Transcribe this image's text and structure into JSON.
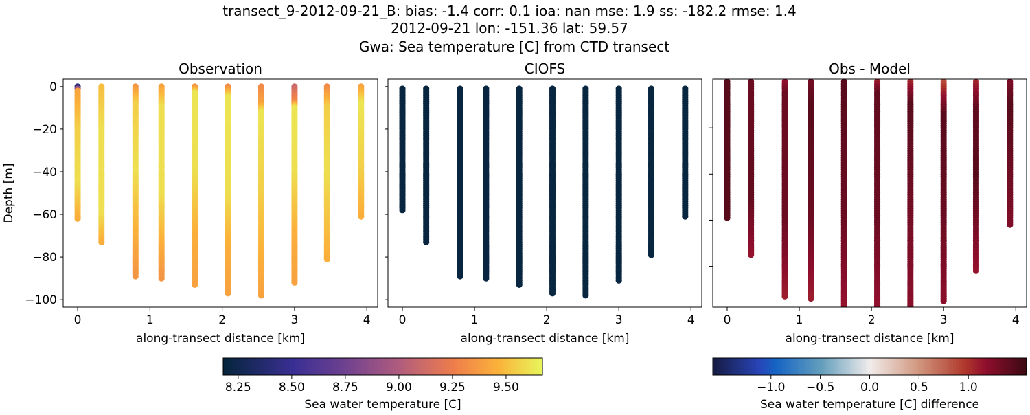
{
  "title_lines": [
    "transect_9-2012-09-21_B: bias: -1.4  corr: 0.1  ioa: nan  mse: 1.9  ss: -182.2  rmse: 1.4",
    "2012-09-21 lon: -151.36 lat: 59.57",
    "Gwa: Sea temperature [C] from CTD transect"
  ],
  "chart_data": [
    {
      "type": "scatter",
      "title": "Observation",
      "xlabel": "along-transect distance [km]",
      "ylabel": "Depth [m]",
      "xlim": [
        -0.2,
        4.15
      ],
      "ylim": [
        -103.5,
        3.5
      ],
      "xticks": [
        0,
        1,
        2,
        3,
        4
      ],
      "yticks": [
        0,
        -20,
        -40,
        -60,
        -80,
        -100
      ],
      "colormap": "thermal",
      "profiles": [
        {
          "x": 0,
          "points": [
            [
              0,
              8.4
            ],
            [
              -2,
              9.4
            ],
            [
              -20,
              9.55
            ],
            [
              -45,
              9.6
            ],
            [
              -62,
              9.45
            ]
          ]
        },
        {
          "x": 0.33,
          "points": [
            [
              0,
              9.5
            ],
            [
              -20,
              9.6
            ],
            [
              -60,
              9.6
            ],
            [
              -73,
              9.45
            ]
          ]
        },
        {
          "x": 0.8,
          "points": [
            [
              0,
              9.35
            ],
            [
              -8,
              9.55
            ],
            [
              -40,
              9.6
            ],
            [
              -70,
              9.45
            ],
            [
              -89,
              9.35
            ]
          ]
        },
        {
          "x": 1.16,
          "points": [
            [
              0,
              9.4
            ],
            [
              -10,
              9.6
            ],
            [
              -50,
              9.6
            ],
            [
              -90,
              9.35
            ]
          ]
        },
        {
          "x": 1.62,
          "points": [
            [
              0,
              9.35
            ],
            [
              -3,
              9.62
            ],
            [
              -40,
              9.6
            ],
            [
              -70,
              9.45
            ],
            [
              -93,
              9.4
            ]
          ]
        },
        {
          "x": 2.08,
          "points": [
            [
              0,
              9.3
            ],
            [
              -5,
              9.62
            ],
            [
              -50,
              9.6
            ],
            [
              -75,
              9.45
            ],
            [
              -97,
              9.4
            ]
          ]
        },
        {
          "x": 2.54,
          "points": [
            [
              0,
              9.3
            ],
            [
              -8,
              9.4
            ],
            [
              -12,
              9.62
            ],
            [
              -50,
              9.55
            ],
            [
              -98,
              9.4
            ]
          ]
        },
        {
          "x": 3.0,
          "points": [
            [
              0,
              9.1
            ],
            [
              -7,
              9.3
            ],
            [
              -10,
              9.62
            ],
            [
              -40,
              9.6
            ],
            [
              -70,
              9.45
            ],
            [
              -92,
              9.4
            ]
          ]
        },
        {
          "x": 3.45,
          "points": [
            [
              0,
              9.3
            ],
            [
              -10,
              9.55
            ],
            [
              -40,
              9.6
            ],
            [
              -81,
              9.45
            ]
          ]
        },
        {
          "x": 3.92,
          "points": [
            [
              0,
              9.4
            ],
            [
              -8,
              9.62
            ],
            [
              -40,
              9.55
            ],
            [
              -61,
              9.45
            ]
          ]
        }
      ]
    },
    {
      "type": "scatter",
      "title": "CIOFS",
      "xlabel": "along-transect distance [km]",
      "xlim": [
        -0.2,
        4.15
      ],
      "ylim": [
        -103.5,
        3.5
      ],
      "xticks": [
        0,
        1,
        2,
        3,
        4
      ],
      "yticks": [
        0,
        -20,
        -40,
        -60,
        -80,
        -100
      ],
      "colormap": "thermal",
      "profiles": [
        {
          "x": 0,
          "points": [
            [
              -1,
              8.2
            ],
            [
              -58,
              8.2
            ]
          ]
        },
        {
          "x": 0.33,
          "points": [
            [
              -1,
              8.2
            ],
            [
              -73,
              8.2
            ]
          ]
        },
        {
          "x": 0.8,
          "points": [
            [
              -1,
              8.2
            ],
            [
              -89,
              8.2
            ]
          ]
        },
        {
          "x": 1.16,
          "points": [
            [
              -1,
              8.2
            ],
            [
              -90,
              8.2
            ]
          ]
        },
        {
          "x": 1.62,
          "points": [
            [
              -1,
              8.2
            ],
            [
              -93,
              8.2
            ]
          ]
        },
        {
          "x": 2.08,
          "points": [
            [
              -1,
              8.2
            ],
            [
              -97,
              8.2
            ]
          ]
        },
        {
          "x": 2.54,
          "points": [
            [
              -1,
              8.2
            ],
            [
              -98,
              8.2
            ]
          ]
        },
        {
          "x": 3.0,
          "points": [
            [
              -1,
              8.2
            ],
            [
              -91,
              8.2
            ]
          ]
        },
        {
          "x": 3.45,
          "points": [
            [
              -1,
              8.2
            ],
            [
              -79,
              8.2
            ]
          ]
        },
        {
          "x": 3.92,
          "points": [
            [
              -1,
              8.2
            ],
            [
              -61,
              8.2
            ]
          ]
        }
      ]
    },
    {
      "type": "scatter",
      "title": "Obs - Model",
      "xlabel": "along-transect distance [km]",
      "xlim": [
        -0.2,
        4.15
      ],
      "ylim": [
        -97.7,
        1.2
      ],
      "xticks": [
        0,
        1,
        2,
        3,
        4
      ],
      "yticks": [
        -20,
        -40,
        -60,
        -80
      ],
      "colormap": "balance",
      "profiles": [
        {
          "x": 0,
          "points": [
            [
              0,
              1.45
            ],
            [
              -59,
              1.45
            ]
          ]
        },
        {
          "x": 0.33,
          "points": [
            [
              0,
              1.35
            ],
            [
              -50,
              1.4
            ],
            [
              -75,
              1.15
            ]
          ]
        },
        {
          "x": 0.8,
          "points": [
            [
              0,
              1.15
            ],
            [
              -5,
              1.35
            ],
            [
              -60,
              1.35
            ],
            [
              -93,
              1.1
            ]
          ]
        },
        {
          "x": 1.16,
          "points": [
            [
              0,
              1.3
            ],
            [
              -10,
              1.45
            ],
            [
              -60,
              1.35
            ],
            [
              -94,
              1.1
            ]
          ]
        },
        {
          "x": 1.62,
          "points": [
            [
              0,
              1.45
            ],
            [
              -60,
              1.35
            ],
            [
              -97,
              1.15
            ]
          ]
        },
        {
          "x": 2.08,
          "points": [
            [
              0,
              1.1
            ],
            [
              -5,
              1.4
            ],
            [
              -60,
              1.35
            ],
            [
              -100,
              1.15
            ]
          ]
        },
        {
          "x": 2.54,
          "points": [
            [
              0,
              1.05
            ],
            [
              -10,
              1.45
            ],
            [
              -60,
              1.3
            ],
            [
              -100,
              1.2
            ]
          ]
        },
        {
          "x": 3.0,
          "points": [
            [
              0,
              0.85
            ],
            [
              -5,
              1.1
            ],
            [
              -15,
              1.45
            ],
            [
              -60,
              1.35
            ],
            [
              -95,
              1.2
            ]
          ]
        },
        {
          "x": 3.45,
          "points": [
            [
              0,
              1.05
            ],
            [
              -12,
              1.4
            ],
            [
              -40,
              1.45
            ],
            [
              -82,
              1.15
            ]
          ]
        },
        {
          "x": 3.92,
          "points": [
            [
              0,
              1.25
            ],
            [
              -10,
              1.45
            ],
            [
              -62,
              1.25
            ]
          ]
        }
      ]
    }
  ],
  "colorbars": [
    {
      "label": "Sea water temperature [C]",
      "range": [
        8.18,
        9.67
      ],
      "ticks": [
        "8.25",
        "8.50",
        "8.75",
        "9.00",
        "9.25",
        "9.50"
      ],
      "colormap": "thermal"
    },
    {
      "label": "Sea water temperature [C] difference",
      "range": [
        -1.59,
        1.59
      ],
      "ticks": [
        "−1.0",
        "−0.5",
        "0.0",
        "0.5",
        "1.0"
      ],
      "colormap": "balance"
    }
  ],
  "colormaps": {
    "thermal": [
      [
        0,
        "#05253b"
      ],
      [
        0.22,
        "#3a2f94"
      ],
      [
        0.38,
        "#6e4190"
      ],
      [
        0.55,
        "#b05c7e"
      ],
      [
        0.72,
        "#ee7d4c"
      ],
      [
        0.86,
        "#fbb13a"
      ],
      [
        1,
        "#e7f65b"
      ]
    ],
    "balance": [
      [
        0,
        "#171b42"
      ],
      [
        0.15,
        "#2845b8"
      ],
      [
        0.2,
        "#1564c3"
      ],
      [
        0.35,
        "#66a0bd"
      ],
      [
        0.5,
        "#f1eceb"
      ],
      [
        0.65,
        "#d29a82"
      ],
      [
        0.8,
        "#b13a2c"
      ],
      [
        0.87,
        "#8f0e2d"
      ],
      [
        1,
        "#3a0a12"
      ]
    ]
  }
}
